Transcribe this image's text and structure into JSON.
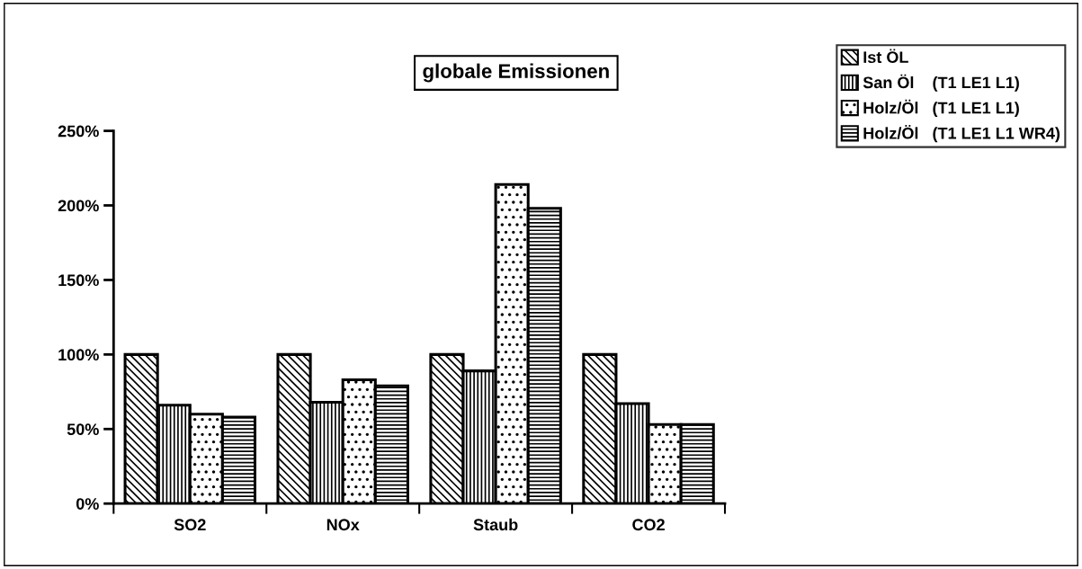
{
  "chart_data": {
    "type": "bar",
    "title": "globale Emissionen",
    "categories": [
      "SO2",
      "NOx",
      "Staub",
      "CO2"
    ],
    "series": [
      {
        "name": "Ist ÖL",
        "color": "#000000",
        "values": [
          100,
          100,
          100,
          100
        ]
      },
      {
        "name": "San Öl    (T1 LE1 L1)",
        "color": "#000000",
        "values": [
          66,
          68,
          89,
          67
        ]
      },
      {
        "name": "Holz/Öl   (T1 LE1 L1)",
        "color": "#000000",
        "values": [
          60,
          83,
          214,
          53
        ]
      },
      {
        "name": "Holz/Öl   (T1 LE1 L1 WR4)",
        "color": "#000000",
        "values": [
          58,
          79,
          198,
          53
        ]
      }
    ],
    "ylim": [
      0,
      250
    ],
    "yticks": [
      {
        "value": 0,
        "label": "0%"
      },
      {
        "value": 50,
        "label": "50%"
      },
      {
        "value": 100,
        "label": "100%"
      },
      {
        "value": 150,
        "label": "150%"
      },
      {
        "value": 200,
        "label": "200%"
      },
      {
        "value": 250,
        "label": "250%"
      }
    ],
    "grid": false,
    "legend": "top right"
  }
}
